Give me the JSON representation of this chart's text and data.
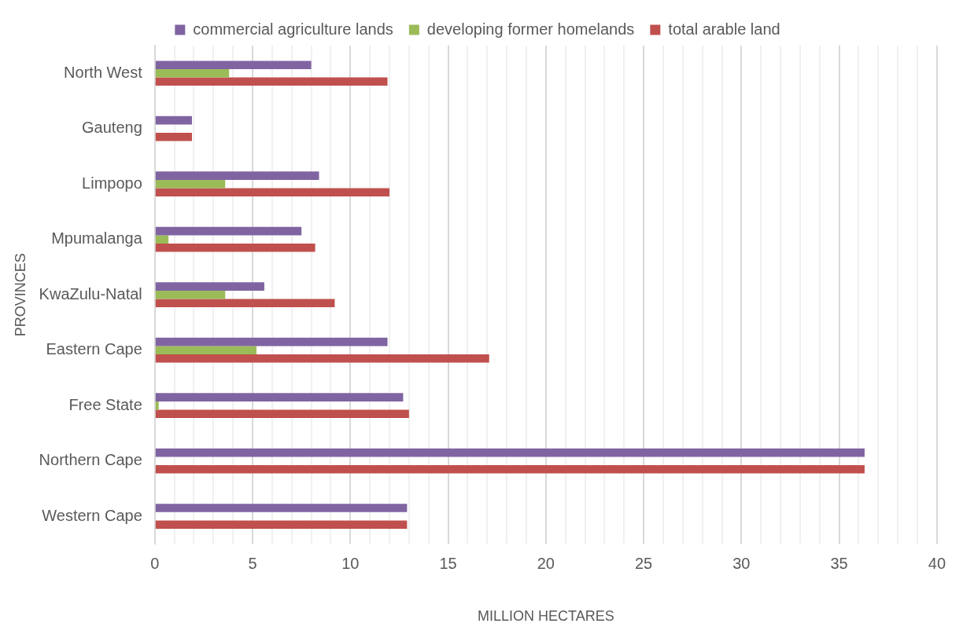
{
  "chart_data": {
    "type": "bar",
    "orientation": "horizontal",
    "xlabel": "MILLION HECTARES",
    "ylabel": "PROVINCES",
    "categories": [
      "North West",
      "Gauteng",
      "Limpopo",
      "Mpumalanga",
      "KwaZulu-Natal",
      "Eastern Cape",
      "Free State",
      "Northern Cape",
      "Western Cape"
    ],
    "series": [
      {
        "name": "commercial agriculture lands",
        "color": "#8064a2",
        "values": [
          8.0,
          1.9,
          8.4,
          7.5,
          5.6,
          11.9,
          12.7,
          36.3,
          12.9
        ]
      },
      {
        "name": "developing former homelands",
        "color": "#9bbb59",
        "values": [
          3.8,
          null,
          3.6,
          0.7,
          3.6,
          5.2,
          0.2,
          null,
          null
        ]
      },
      {
        "name": "total arable land",
        "color": "#c0504d",
        "values": [
          11.9,
          1.9,
          12.0,
          8.2,
          9.2,
          17.1,
          13.0,
          36.3,
          12.9
        ]
      }
    ],
    "xlim": [
      0,
      40
    ],
    "xticks": [
      0,
      {
        "value": 1,
        "label": null
      },
      {
        "value": 2,
        "label": null
      },
      {
        "value": 3,
        "label": null
      },
      {
        "value": 4,
        "label": null
      },
      5,
      {
        "value": 6,
        "label": null
      },
      {
        "value": 7,
        "label": null
      },
      {
        "value": 8,
        "label": null
      },
      {
        "value": 9,
        "label": null
      },
      10,
      {
        "value": 11,
        "label": null
      },
      {
        "value": 12,
        "label": null
      },
      {
        "value": 13,
        "label": null
      },
      {
        "value": 14,
        "label": null
      },
      15,
      {
        "value": 16,
        "label": null
      },
      {
        "value": 17,
        "label": null
      },
      {
        "value": 18,
        "label": null
      },
      {
        "value": 19,
        "label": null
      },
      20,
      {
        "value": 21,
        "label": null
      },
      {
        "value": 22,
        "label": null
      },
      {
        "value": 23,
        "label": null
      },
      {
        "value": 24,
        "label": null
      },
      25,
      {
        "value": 26,
        "label": null
      },
      {
        "value": 27,
        "label": null
      },
      {
        "value": 28,
        "label": null
      },
      {
        "value": 29,
        "label": null
      },
      30,
      {
        "value": 31,
        "label": null
      },
      {
        "value": 32,
        "label": null
      },
      {
        "value": 33,
        "label": null
      },
      {
        "value": 34,
        "label": null
      },
      35,
      {
        "value": 36,
        "label": null
      },
      {
        "value": 37,
        "label": null
      },
      {
        "value": 38,
        "label": null
      },
      {
        "value": 39,
        "label": null
      },
      40
    ],
    "grid": "x",
    "legend": "top"
  }
}
